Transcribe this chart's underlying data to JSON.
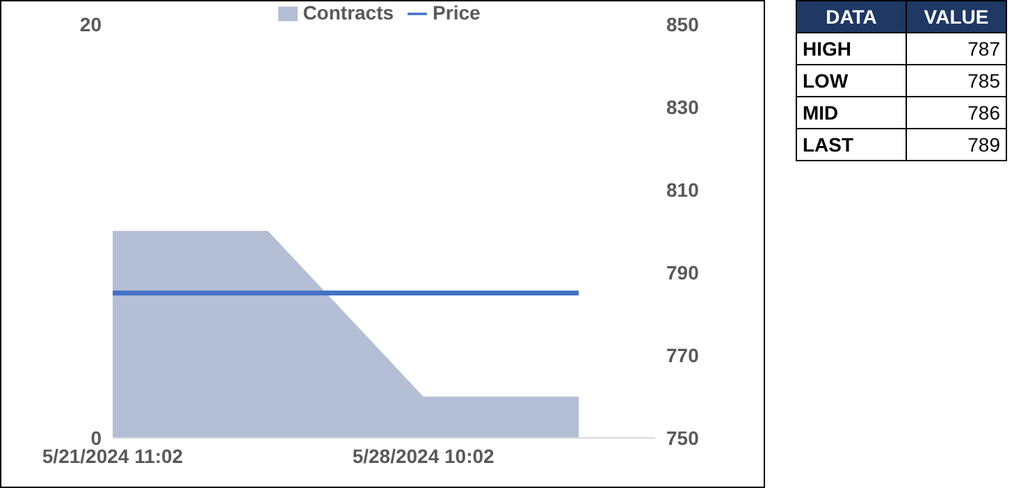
{
  "chart_data": [
    {
      "type": "area",
      "categories": [
        "5/21/2024 11:02",
        null,
        "5/28/2024 10:02",
        null
      ],
      "series": [
        {
          "name": "Contracts",
          "type": "area",
          "color": "#b4bfd5",
          "values": [
            10,
            10,
            2,
            2
          ]
        },
        {
          "name": "Price",
          "type": "line",
          "axis": "y2",
          "color": "#4472c4",
          "values": [
            785,
            785,
            785,
            785
          ]
        }
      ],
      "ylim": [
        0,
        20
      ],
      "yticks": [
        0,
        20
      ],
      "y2lim": [
        750,
        850
      ],
      "y2ticks": [
        750,
        770,
        790,
        810,
        830,
        850
      ],
      "legend": "top",
      "marker": "none"
    },
    {
      "type": "other",
      "xlabel": "DATA",
      "ylabel": "VALUE",
      "categories": [
        "HIGH",
        "LOW",
        "MID",
        "LAST"
      ],
      "values": [
        787,
        785,
        786,
        789
      ],
      "data_labels": true
    }
  ]
}
